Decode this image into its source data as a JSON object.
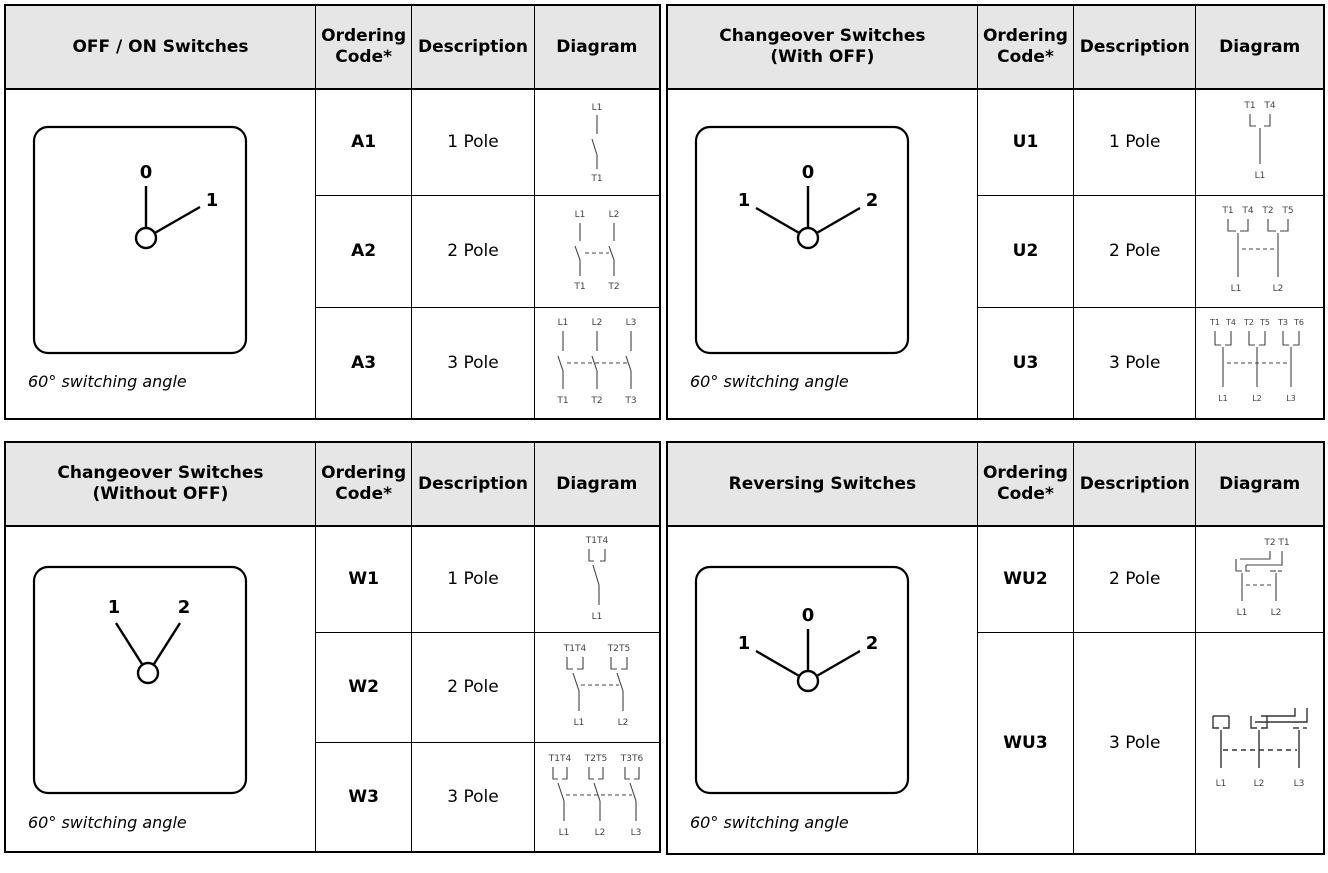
{
  "tables": [
    {
      "title": "OFF / ON Switches",
      "headers": {
        "code": "Ordering Code*",
        "description": "Description",
        "diagram": "Diagram"
      },
      "dial_labels": [
        "0",
        "1"
      ],
      "angle_note": "60° switching angle",
      "rows": [
        {
          "code": "A1",
          "description": "1 Pole",
          "diagram_labels": [
            "L1",
            "T1"
          ]
        },
        {
          "code": "A2",
          "description": "2 Pole",
          "diagram_labels": [
            "L1",
            "L2",
            "T1",
            "T2"
          ]
        },
        {
          "code": "A3",
          "description": "3 Pole",
          "diagram_labels": [
            "L1",
            "L2",
            "L3",
            "T1",
            "T2",
            "T3"
          ]
        }
      ]
    },
    {
      "title": "Changeover Switches (With OFF)",
      "headers": {
        "code": "Ordering Code*",
        "description": "Description",
        "diagram": "Diagram"
      },
      "dial_labels": [
        "0",
        "1",
        "2"
      ],
      "angle_note": "60° switching angle",
      "rows": [
        {
          "code": "U1",
          "description": "1 Pole",
          "diagram_labels": [
            "T1",
            "T4",
            "L1"
          ]
        },
        {
          "code": "U2",
          "description": "2 Pole",
          "diagram_labels": [
            "T1",
            "T4",
            "T2",
            "T5",
            "L1",
            "L2"
          ]
        },
        {
          "code": "U3",
          "description": "3 Pole",
          "diagram_labels": [
            "T1",
            "T4",
            "T2",
            "T5",
            "T3",
            "T6",
            "L1",
            "L2",
            "L3"
          ]
        }
      ]
    },
    {
      "title": "Changeover Switches (Without OFF)",
      "headers": {
        "code": "Ordering Code*",
        "description": "Description",
        "diagram": "Diagram"
      },
      "dial_labels": [
        "1",
        "2"
      ],
      "angle_note": "60° switching angle",
      "rows": [
        {
          "code": "W1",
          "description": "1 Pole",
          "diagram_labels": [
            "T1T4",
            "L1"
          ]
        },
        {
          "code": "W2",
          "description": "2 Pole",
          "diagram_labels": [
            "T1T4",
            "T2T5",
            "L1",
            "L2"
          ]
        },
        {
          "code": "W3",
          "description": "3 Pole",
          "diagram_labels": [
            "T1T4",
            "T2T5",
            "T3T6",
            "L1",
            "L2",
            "L3"
          ]
        }
      ]
    },
    {
      "title": "Reversing Switches",
      "headers": {
        "code": "Ordering Code*",
        "description": "Description",
        "diagram": "Diagram"
      },
      "dial_labels": [
        "0",
        "1",
        "2"
      ],
      "angle_note": "60° switching angle",
      "rows": [
        {
          "code": "WU2",
          "description": "2 Pole",
          "diagram_labels": [
            "T2",
            "T1",
            "L1",
            "L2"
          ]
        },
        {
          "code": "WU3",
          "description": "3 Pole",
          "diagram_labels": [
            "L1",
            "L2",
            "L3"
          ]
        }
      ]
    }
  ]
}
